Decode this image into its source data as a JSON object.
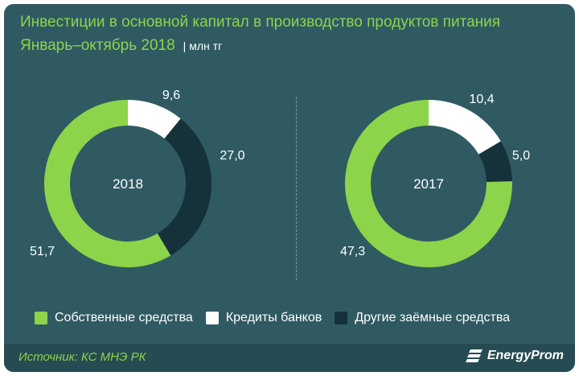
{
  "header": {
    "title_line1": "Инвестиции в основной капитал в производство продуктов питания",
    "title_line2": "Январь–октябрь 2018",
    "unit": "| млн тг"
  },
  "colors": {
    "background": "#2f5a62",
    "green": "#8cd44a",
    "white": "#ffffff",
    "dark": "#15323a"
  },
  "legend": {
    "own_funds": "Собственные средства",
    "bank_loans": "Кредиты банков",
    "other_borrowed": "Другие заёмные средства"
  },
  "chart_data": [
    {
      "type": "pie",
      "center_label": "2018",
      "categories": [
        "Собственные средства",
        "Кредиты банков",
        "Другие заёмные средства"
      ],
      "values": [
        51.7,
        9.6,
        27.0
      ],
      "value_labels": [
        "51,7",
        "9,6",
        "27,0"
      ]
    },
    {
      "type": "pie",
      "center_label": "2017",
      "categories": [
        "Собственные средства",
        "Кредиты банков",
        "Другие заёмные средства"
      ],
      "values": [
        47.3,
        10.4,
        5.0
      ],
      "value_labels": [
        "47,3",
        "10,4",
        "5,0"
      ]
    }
  ],
  "footer": {
    "source": "Источник: КС МНЭ РК",
    "brand": "EnergyProm"
  }
}
